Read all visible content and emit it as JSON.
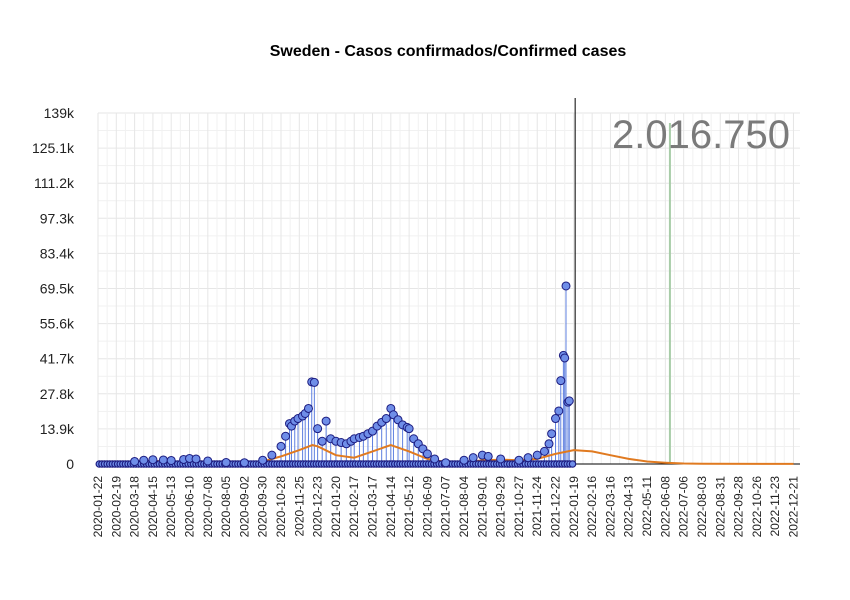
{
  "chart_data": {
    "type": "line",
    "title": "Sweden - Casos confirmados/Confirmed cases",
    "total_label": "2.016.750",
    "xlabel": "",
    "ylabel": "",
    "x_range": [
      "2020-01-22",
      "2022-12-31"
    ],
    "ylim": [
      0,
      139000
    ],
    "y_ticks": [
      {
        "value": 0,
        "label": "0"
      },
      {
        "value": 13900,
        "label": "13.9k"
      },
      {
        "value": 27800,
        "label": "27.8k"
      },
      {
        "value": 41700,
        "label": "41.7k"
      },
      {
        "value": 55600,
        "label": "55.6k"
      },
      {
        "value": 69500,
        "label": "69.5k"
      },
      {
        "value": 83400,
        "label": "83.4k"
      },
      {
        "value": 97300,
        "label": "97.3k"
      },
      {
        "value": 111200,
        "label": "111.2k"
      },
      {
        "value": 125100,
        "label": "125.1k"
      },
      {
        "value": 139000,
        "label": "139k"
      }
    ],
    "x_ticks": [
      "2020-01-22",
      "2020-02-19",
      "2020-03-18",
      "2020-04-15",
      "2020-05-13",
      "2020-06-10",
      "2020-07-08",
      "2020-08-05",
      "2020-09-02",
      "2020-09-30",
      "2020-10-28",
      "2020-11-25",
      "2020-12-23",
      "2021-01-20",
      "2021-02-17",
      "2021-03-17",
      "2021-04-14",
      "2021-05-12",
      "2021-06-09",
      "2021-07-07",
      "2021-08-04",
      "2021-09-01",
      "2021-09-29",
      "2021-10-27",
      "2021-11-24",
      "2021-12-22",
      "2022-01-19",
      "2022-02-16",
      "2022-03-16",
      "2022-04-13",
      "2022-05-11",
      "2022-06-08",
      "2022-07-06",
      "2022-08-03",
      "2022-08-31",
      "2022-09-28",
      "2022-10-26",
      "2022-11-23",
      "2022-12-21"
    ],
    "grid": true,
    "today_marker": "2022-01-21",
    "forecast_marker": "2022-06-15",
    "colors": {
      "points": "#6f8ee8",
      "point_outline": "#1c1c80",
      "stems": "#5f80e0",
      "smooth": "#e07a20",
      "marker_today": "#000000",
      "marker_forecast": "#a8cca8",
      "grid": "#e6e6e6"
    },
    "series": [
      {
        "type": "scatter",
        "points": [
          [
            "2020-03-18",
            1000
          ],
          [
            "2020-04-01",
            1500
          ],
          [
            "2020-04-15",
            1700
          ],
          [
            "2020-05-01",
            1600
          ],
          [
            "2020-05-13",
            1400
          ],
          [
            "2020-06-01",
            1800
          ],
          [
            "2020-06-10",
            2200
          ],
          [
            "2020-06-20",
            2000
          ],
          [
            "2020-07-08",
            1200
          ],
          [
            "2020-08-05",
            600
          ],
          [
            "2020-09-02",
            500
          ],
          [
            "2020-09-30",
            1500
          ],
          [
            "2020-10-14",
            3500
          ],
          [
            "2020-10-28",
            7000
          ],
          [
            "2020-11-04",
            11000
          ],
          [
            "2020-11-10",
            16000
          ],
          [
            "2020-11-13",
            15000
          ],
          [
            "2020-11-18",
            17000
          ],
          [
            "2020-11-23",
            18000
          ],
          [
            "2020-11-30",
            19000
          ],
          [
            "2020-12-04",
            20000
          ],
          [
            "2020-12-09",
            22000
          ],
          [
            "2020-12-14",
            32500
          ],
          [
            "2020-12-18",
            32300
          ],
          [
            "2020-12-23",
            14000
          ],
          [
            "2020-12-30",
            9000
          ],
          [
            "2021-01-05",
            17000
          ],
          [
            "2021-01-12",
            10000
          ],
          [
            "2021-01-20",
            9000
          ],
          [
            "2021-01-28",
            8500
          ],
          [
            "2021-02-05",
            8000
          ],
          [
            "2021-02-12",
            9000
          ],
          [
            "2021-02-17",
            10000
          ],
          [
            "2021-02-25",
            10500
          ],
          [
            "2021-03-03",
            11000
          ],
          [
            "2021-03-10",
            12000
          ],
          [
            "2021-03-17",
            13000
          ],
          [
            "2021-03-24",
            15000
          ],
          [
            "2021-03-31",
            16500
          ],
          [
            "2021-04-07",
            18000
          ],
          [
            "2021-04-14",
            22000
          ],
          [
            "2021-04-18",
            19500
          ],
          [
            "2021-04-25",
            17500
          ],
          [
            "2021-05-02",
            15500
          ],
          [
            "2021-05-09",
            14500
          ],
          [
            "2021-05-12",
            14000
          ],
          [
            "2021-05-19",
            10000
          ],
          [
            "2021-05-26",
            8000
          ],
          [
            "2021-06-02",
            6000
          ],
          [
            "2021-06-09",
            4000
          ],
          [
            "2021-06-20",
            2000
          ],
          [
            "2021-07-07",
            500
          ],
          [
            "2021-08-04",
            1500
          ],
          [
            "2021-08-18",
            2500
          ],
          [
            "2021-09-01",
            3500
          ],
          [
            "2021-09-10",
            3000
          ],
          [
            "2021-09-29",
            2000
          ],
          [
            "2021-10-27",
            1500
          ],
          [
            "2021-11-10",
            2500
          ],
          [
            "2021-11-24",
            3500
          ],
          [
            "2021-12-05",
            5000
          ],
          [
            "2021-12-12",
            8000
          ],
          [
            "2021-12-16",
            12000
          ],
          [
            "2021-12-22",
            18000
          ],
          [
            "2021-12-27",
            21000
          ],
          [
            "2021-12-30",
            33000
          ],
          [
            "2022-01-03",
            43000
          ],
          [
            "2022-01-05",
            42000
          ],
          [
            "2022-01-07",
            70500
          ],
          [
            "2022-01-10",
            24500
          ],
          [
            "2022-01-12",
            25000
          ]
        ]
      },
      {
        "type": "smooth",
        "points": [
          [
            "2020-01-22",
            0
          ],
          [
            "2020-03-18",
            500
          ],
          [
            "2020-04-15",
            1500
          ],
          [
            "2020-05-01",
            800
          ],
          [
            "2020-05-13",
            300
          ],
          [
            "2020-06-10",
            1500
          ],
          [
            "2020-06-25",
            1200
          ],
          [
            "2020-07-08",
            400
          ],
          [
            "2020-09-02",
            300
          ],
          [
            "2020-09-30",
            1000
          ],
          [
            "2020-10-28",
            3000
          ],
          [
            "2020-11-25",
            5500
          ],
          [
            "2020-12-15",
            7500
          ],
          [
            "2020-12-23",
            7000
          ],
          [
            "2021-01-20",
            3500
          ],
          [
            "2021-02-17",
            2500
          ],
          [
            "2021-03-17",
            5000
          ],
          [
            "2021-04-14",
            7500
          ],
          [
            "2021-05-12",
            5000
          ],
          [
            "2021-06-09",
            2000
          ],
          [
            "2021-07-07",
            800
          ],
          [
            "2021-08-04",
            500
          ],
          [
            "2021-09-01",
            1500
          ],
          [
            "2021-09-29",
            1700
          ],
          [
            "2021-10-27",
            1500
          ],
          [
            "2021-11-24",
            2000
          ],
          [
            "2021-12-22",
            4000
          ],
          [
            "2022-01-19",
            5500
          ],
          [
            "2022-02-16",
            5000
          ],
          [
            "2022-03-16",
            3500
          ],
          [
            "2022-04-13",
            2000
          ],
          [
            "2022-05-11",
            1000
          ],
          [
            "2022-06-08",
            500
          ],
          [
            "2022-07-06",
            200
          ],
          [
            "2022-08-03",
            100
          ],
          [
            "2022-12-21",
            50
          ]
        ]
      }
    ]
  }
}
